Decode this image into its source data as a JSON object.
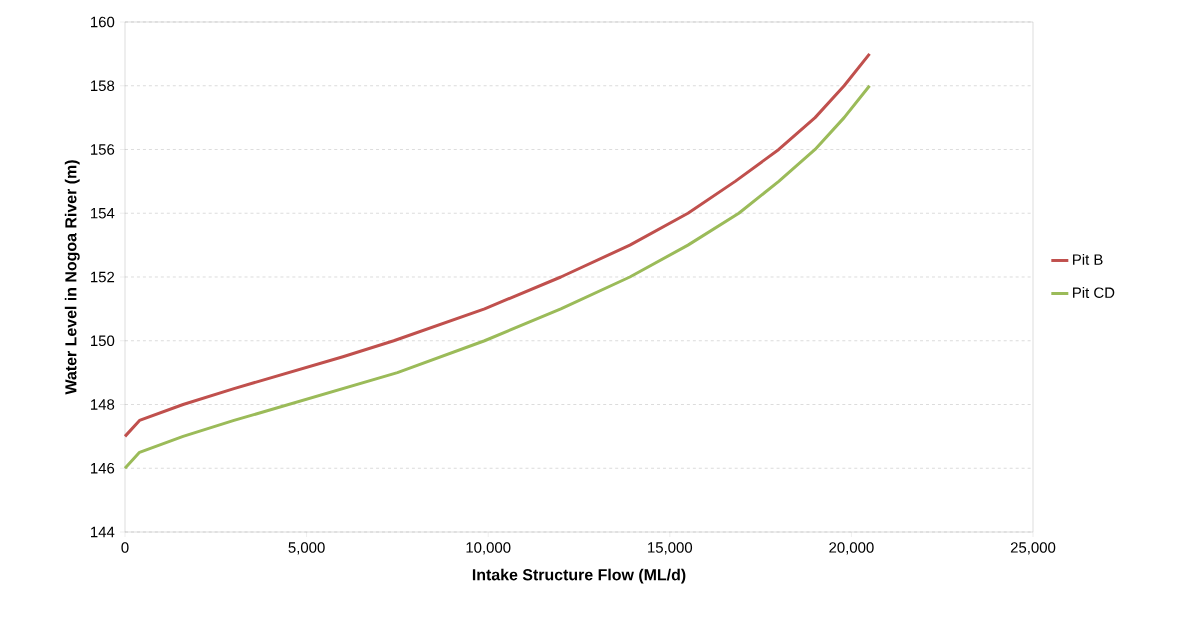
{
  "chart_data": {
    "type": "line",
    "xlabel": "Intake Structure Flow (ML/d)",
    "ylabel": "Water Level  in Nogoa River (m)",
    "xlim": [
      0,
      25000
    ],
    "ylim": [
      144,
      160
    ],
    "xticks": [
      {
        "value": 0,
        "label": "0"
      },
      {
        "value": 5000,
        "label": "5,000"
      },
      {
        "value": 10000,
        "label": "10,000"
      },
      {
        "value": 15000,
        "label": "15,000"
      },
      {
        "value": 20000,
        "label": "20,000"
      },
      {
        "value": 25000,
        "label": "25,000"
      }
    ],
    "yticks": [
      144,
      146,
      148,
      150,
      152,
      154,
      156,
      158,
      160
    ],
    "grid": "y",
    "legend": "right",
    "marker": "none",
    "line_style": "solid",
    "series": [
      {
        "name": "Pit B",
        "color": "#c0504d",
        "x": [
          0,
          400,
          1600,
          3000,
          4500,
          6000,
          7400,
          9900,
          12000,
          13900,
          15500,
          16800,
          18000,
          19000,
          19800,
          20500
        ],
        "values": [
          147,
          147.5,
          148,
          148.5,
          149,
          149.5,
          150,
          151,
          152,
          153,
          154,
          155,
          156,
          157,
          158,
          159
        ]
      },
      {
        "name": "Pit CD",
        "color": "#9bbb59",
        "x": [
          0,
          400,
          1600,
          3000,
          4500,
          6000,
          7500,
          9900,
          12000,
          13900,
          15500,
          16900,
          18000,
          19000,
          19800,
          20500
        ],
        "values": [
          146,
          146.5,
          147,
          147.5,
          148,
          148.5,
          149,
          150,
          151,
          152,
          153,
          154,
          155,
          156,
          157,
          158
        ]
      }
    ]
  }
}
